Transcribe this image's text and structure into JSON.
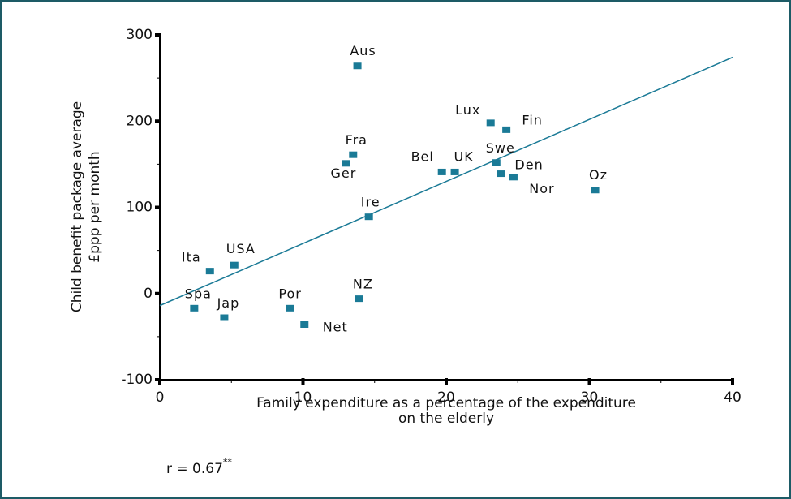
{
  "chart_data": {
    "type": "scatter",
    "xlabel": [
      "Family expenditure as a percentage of the expenditure",
      "on the elderly"
    ],
    "ylabel": [
      "Child benefit package average",
      "£ppp per month"
    ],
    "annotation": {
      "text": "r = 0.67",
      "superscript": "**"
    },
    "xlim": [
      0,
      40
    ],
    "xticks": [
      0,
      10,
      20,
      30,
      40
    ],
    "ylim": [
      -100,
      300
    ],
    "yticks": [
      -100,
      0,
      100,
      200,
      300
    ],
    "color": "#1a7a96",
    "labels": [
      "Aus",
      "Lux",
      "Fin",
      "Fra",
      "Ger",
      "Bel",
      "UK",
      "Swe",
      "Den",
      "Nor",
      "Oz",
      "Ire",
      "Ita",
      "USA",
      "Spa",
      "Jap",
      "Por",
      "NZ",
      "Net"
    ],
    "x": [
      13.8,
      23.1,
      24.2,
      13.5,
      13.0,
      19.7,
      20.6,
      23.5,
      23.8,
      24.7,
      30.4,
      14.6,
      3.5,
      5.2,
      2.4,
      4.5,
      9.1,
      13.9,
      10.1
    ],
    "y": [
      264,
      198,
      190,
      161,
      151,
      141,
      141,
      152,
      139,
      135,
      120,
      89,
      26,
      33,
      -17,
      -28,
      -17,
      -6,
      -36
    ],
    "trend_line": {
      "x": [
        0,
        40
      ],
      "y": [
        -14,
        274
      ]
    }
  }
}
